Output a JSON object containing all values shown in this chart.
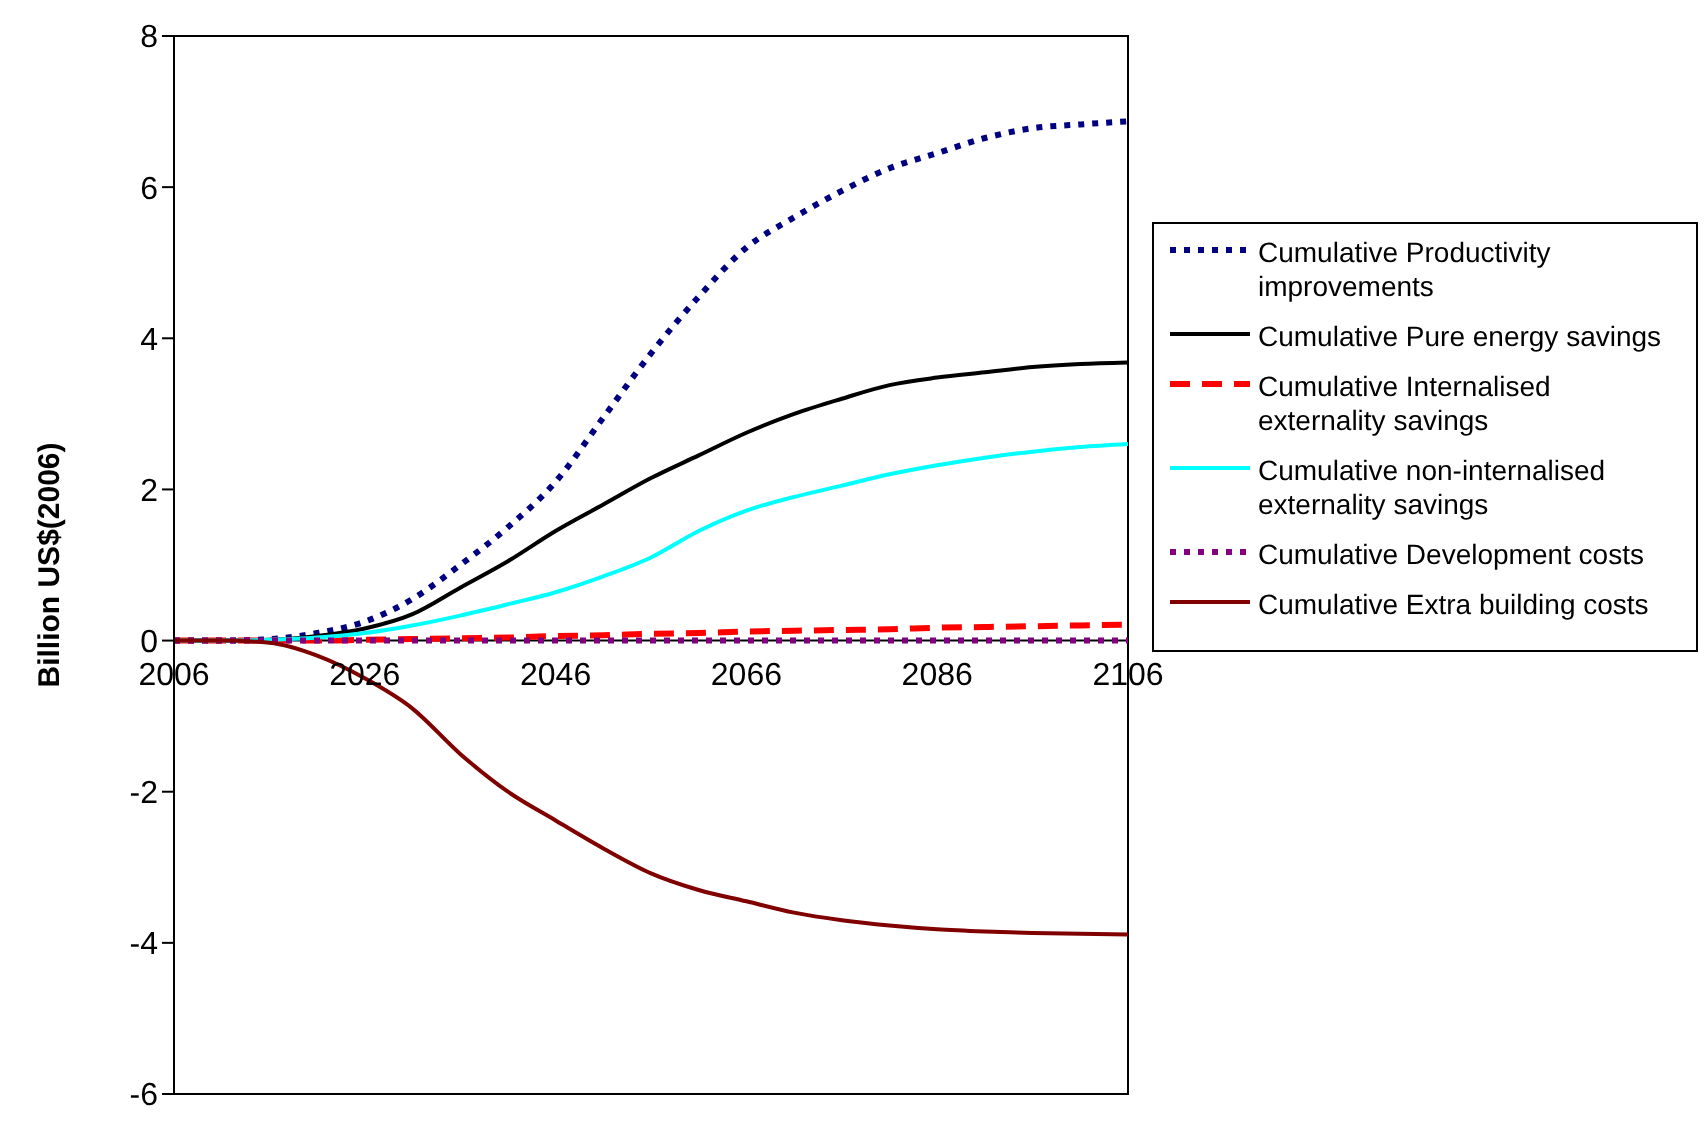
{
  "chart_data": {
    "type": "line",
    "ylabel": "Billion US$(2006)",
    "x": [
      2006,
      2011,
      2016,
      2021,
      2026,
      2031,
      2036,
      2041,
      2046,
      2051,
      2056,
      2061,
      2066,
      2071,
      2076,
      2081,
      2086,
      2091,
      2096,
      2101,
      2106
    ],
    "series": [
      {
        "name": "Cumulative Productivity improvements",
        "color": "#000080",
        "line_style": "dotted",
        "values": [
          0,
          0,
          0.02,
          0.1,
          0.25,
          0.55,
          1.0,
          1.5,
          2.1,
          2.95,
          3.8,
          4.55,
          5.2,
          5.6,
          5.95,
          6.25,
          6.45,
          6.65,
          6.78,
          6.83,
          6.87
        ]
      },
      {
        "name": "Cumulative Pure energy savings",
        "color": "#000000",
        "line_style": "solid",
        "values": [
          0,
          0,
          0.01,
          0.06,
          0.16,
          0.35,
          0.7,
          1.05,
          1.45,
          1.8,
          2.15,
          2.45,
          2.75,
          3.0,
          3.2,
          3.38,
          3.48,
          3.55,
          3.62,
          3.66,
          3.68
        ]
      },
      {
        "name": "Cumulative Internalised externality savings",
        "color": "#ff0000",
        "line_style": "dashed",
        "values": [
          0,
          0,
          0,
          0,
          0.01,
          0.02,
          0.03,
          0.04,
          0.06,
          0.07,
          0.09,
          0.1,
          0.12,
          0.13,
          0.14,
          0.15,
          0.17,
          0.18,
          0.19,
          0.2,
          0.21
        ]
      },
      {
        "name": "Cumulative non-internalised externality savings",
        "color": "#00ffff",
        "line_style": "solid",
        "values": [
          0,
          0,
          0.01,
          0.04,
          0.1,
          0.2,
          0.33,
          0.48,
          0.64,
          0.85,
          1.1,
          1.45,
          1.72,
          1.9,
          2.05,
          2.2,
          2.32,
          2.42,
          2.5,
          2.56,
          2.6
        ]
      },
      {
        "name": "Cumulative Development costs",
        "color": "#800080",
        "line_style": "dotted",
        "values": [
          0,
          0,
          0,
          0,
          0,
          0,
          0,
          0,
          0,
          0,
          0,
          0,
          0,
          0,
          0,
          0,
          0,
          0,
          0,
          0,
          0
        ]
      },
      {
        "name": "Cumulative Extra building costs",
        "color": "#800000",
        "line_style": "solid",
        "values": [
          0,
          0,
          -0.03,
          -0.2,
          -0.5,
          -0.9,
          -1.5,
          -2.0,
          -2.38,
          -2.75,
          -3.08,
          -3.3,
          -3.45,
          -3.6,
          -3.7,
          -3.77,
          -3.82,
          -3.85,
          -3.87,
          -3.88,
          -3.89
        ]
      }
    ],
    "xlim": [
      2006,
      2106
    ],
    "xticks": [
      2006,
      2026,
      2046,
      2066,
      2086,
      2106
    ],
    "ylim": [
      -6,
      8
    ],
    "yticks": [
      -6,
      -4,
      -2,
      0,
      2,
      4,
      6,
      8
    ],
    "grid": false,
    "legend": "right",
    "marker": "none"
  }
}
